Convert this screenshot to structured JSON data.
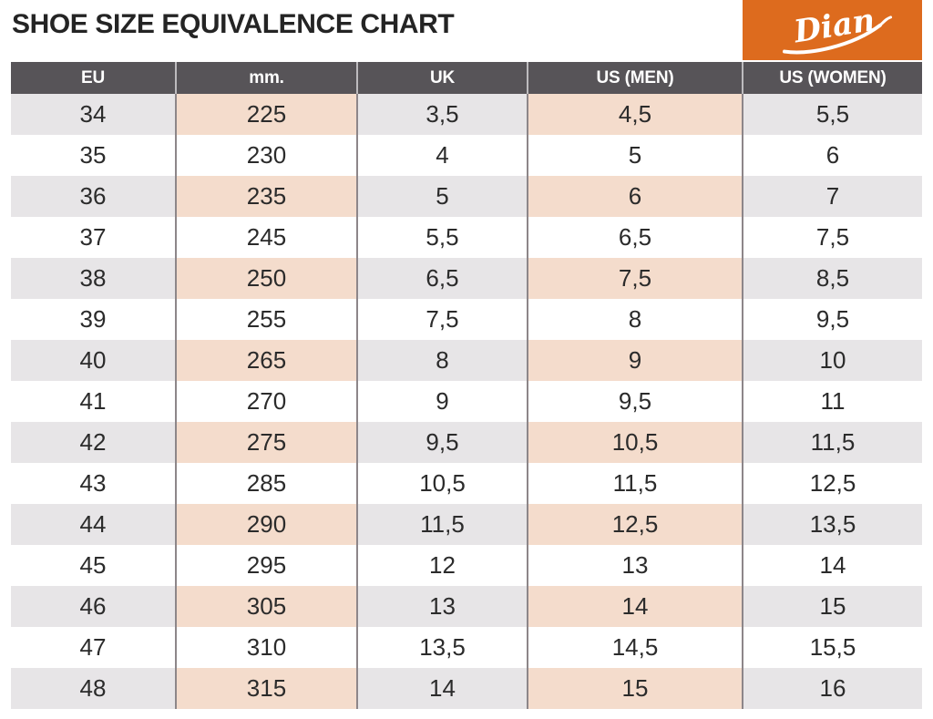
{
  "page": {
    "title": "SHOE SIZE EQUIVALENCE CHART"
  },
  "logo": {
    "brand": "Dian"
  },
  "colors": {
    "logo_background": "#DD6B1E",
    "logo_text": "#FFFFFF",
    "header_background": "#575458",
    "header_text": "#FFFFFF",
    "stripe_gray": "#E7E5E7",
    "stripe_peach": "#F4DCCC",
    "row_white": "#FFFFFF",
    "cell_text": "#2B2B2B",
    "column_border": "#8D8689"
  },
  "chart_data": {
    "type": "table",
    "title": "SHOE SIZE EQUIVALENCE CHART",
    "columns": [
      "EU",
      "mm.",
      "UK",
      "US (MEN)",
      "US (WOMEN)"
    ],
    "rows": [
      [
        "34",
        "225",
        "3,5",
        "4,5",
        "5,5"
      ],
      [
        "35",
        "230",
        "4",
        "5",
        "6"
      ],
      [
        "36",
        "235",
        "5",
        "6",
        "7"
      ],
      [
        "37",
        "245",
        "5,5",
        "6,5",
        "7,5"
      ],
      [
        "38",
        "250",
        "6,5",
        "7,5",
        "8,5"
      ],
      [
        "39",
        "255",
        "7,5",
        "8",
        "9,5"
      ],
      [
        "40",
        "265",
        "8",
        "9",
        "10"
      ],
      [
        "41",
        "270",
        "9",
        "9,5",
        "11"
      ],
      [
        "42",
        "275",
        "9,5",
        "10,5",
        "11,5"
      ],
      [
        "43",
        "285",
        "10,5",
        "11,5",
        "12,5"
      ],
      [
        "44",
        "290",
        "11,5",
        "12,5",
        "13,5"
      ],
      [
        "45",
        "295",
        "12",
        "13",
        "14"
      ],
      [
        "46",
        "305",
        "13",
        "14",
        "15"
      ],
      [
        "47",
        "310",
        "13,5",
        "14,5",
        "15,5"
      ],
      [
        "48",
        "315",
        "14",
        "15",
        "16"
      ]
    ],
    "layout_hints": {
      "striped_rows": "every other row starting with the first (EU 34)",
      "stripe_colors_by_column": [
        "gray",
        "peach",
        "gray",
        "peach",
        "gray"
      ]
    }
  }
}
